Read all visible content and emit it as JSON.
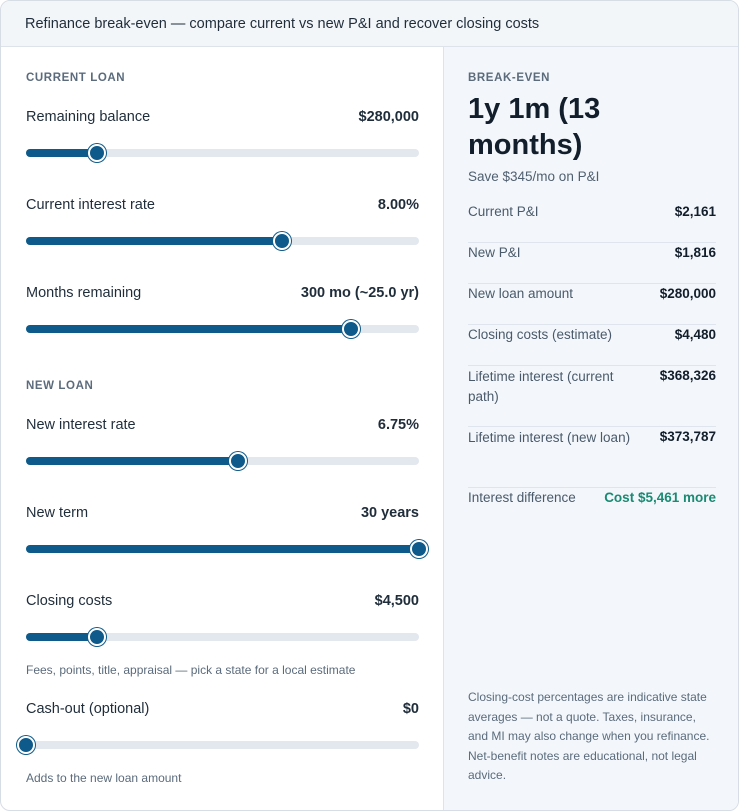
{
  "header": {
    "title": "Refinance break-even — compare current vs new P&I and recover closing costs"
  },
  "current_loan": {
    "section_label": "CURRENT LOAN",
    "fields": [
      {
        "label": "Remaining balance",
        "value": "$280,000",
        "fraction": 0.18
      },
      {
        "label": "Current interest rate",
        "value": "8.00%",
        "fraction": 0.652
      },
      {
        "label": "Months remaining",
        "value": "300 mo (~25.0 yr)",
        "fraction": 0.826
      }
    ]
  },
  "new_loan": {
    "section_label": "NEW LOAN",
    "fields": [
      {
        "label": "New interest rate",
        "value": "6.75%",
        "fraction": 0.54
      },
      {
        "label": "New term",
        "value": "30 years",
        "fraction": 1.0
      },
      {
        "label": "Closing costs",
        "value": "$4,500",
        "fraction": 0.18,
        "hint": "Fees, points, title, appraisal — pick a state for a local estimate"
      },
      {
        "label": "Cash-out (optional)",
        "value": "$0",
        "fraction": 0.0,
        "hint": "Adds to the new loan amount"
      }
    ]
  },
  "summary": {
    "label": "BREAK-EVEN",
    "headline": "1y 1m (13 months)",
    "subline": "Save $345/mo on P&I",
    "rows": [
      {
        "label": "Current P&I",
        "value": "$2,161"
      },
      {
        "label": "New P&I",
        "value": "$1,816"
      },
      {
        "label": "New loan amount",
        "value": "$280,000"
      },
      {
        "label": "Closing costs (estimate)",
        "value": "$4,480"
      },
      {
        "label": "Lifetime interest (current path)",
        "value": "$368,326"
      },
      {
        "label": "Lifetime interest (new loan)",
        "value": "$373,787"
      },
      {
        "label": "Interest difference",
        "value": "Cost $5,461 more"
      }
    ],
    "disclaimer": "Closing-cost percentages are indicative state averages — not a quote. Taxes, insurance, and MI may also change when you refinance. Net-benefit notes are educational, not legal advice."
  },
  "colors": {
    "accent": "#0e5a8a",
    "track": "#e3e8ee",
    "positive": "#1a8a72",
    "panel": "#f3f7fb"
  }
}
